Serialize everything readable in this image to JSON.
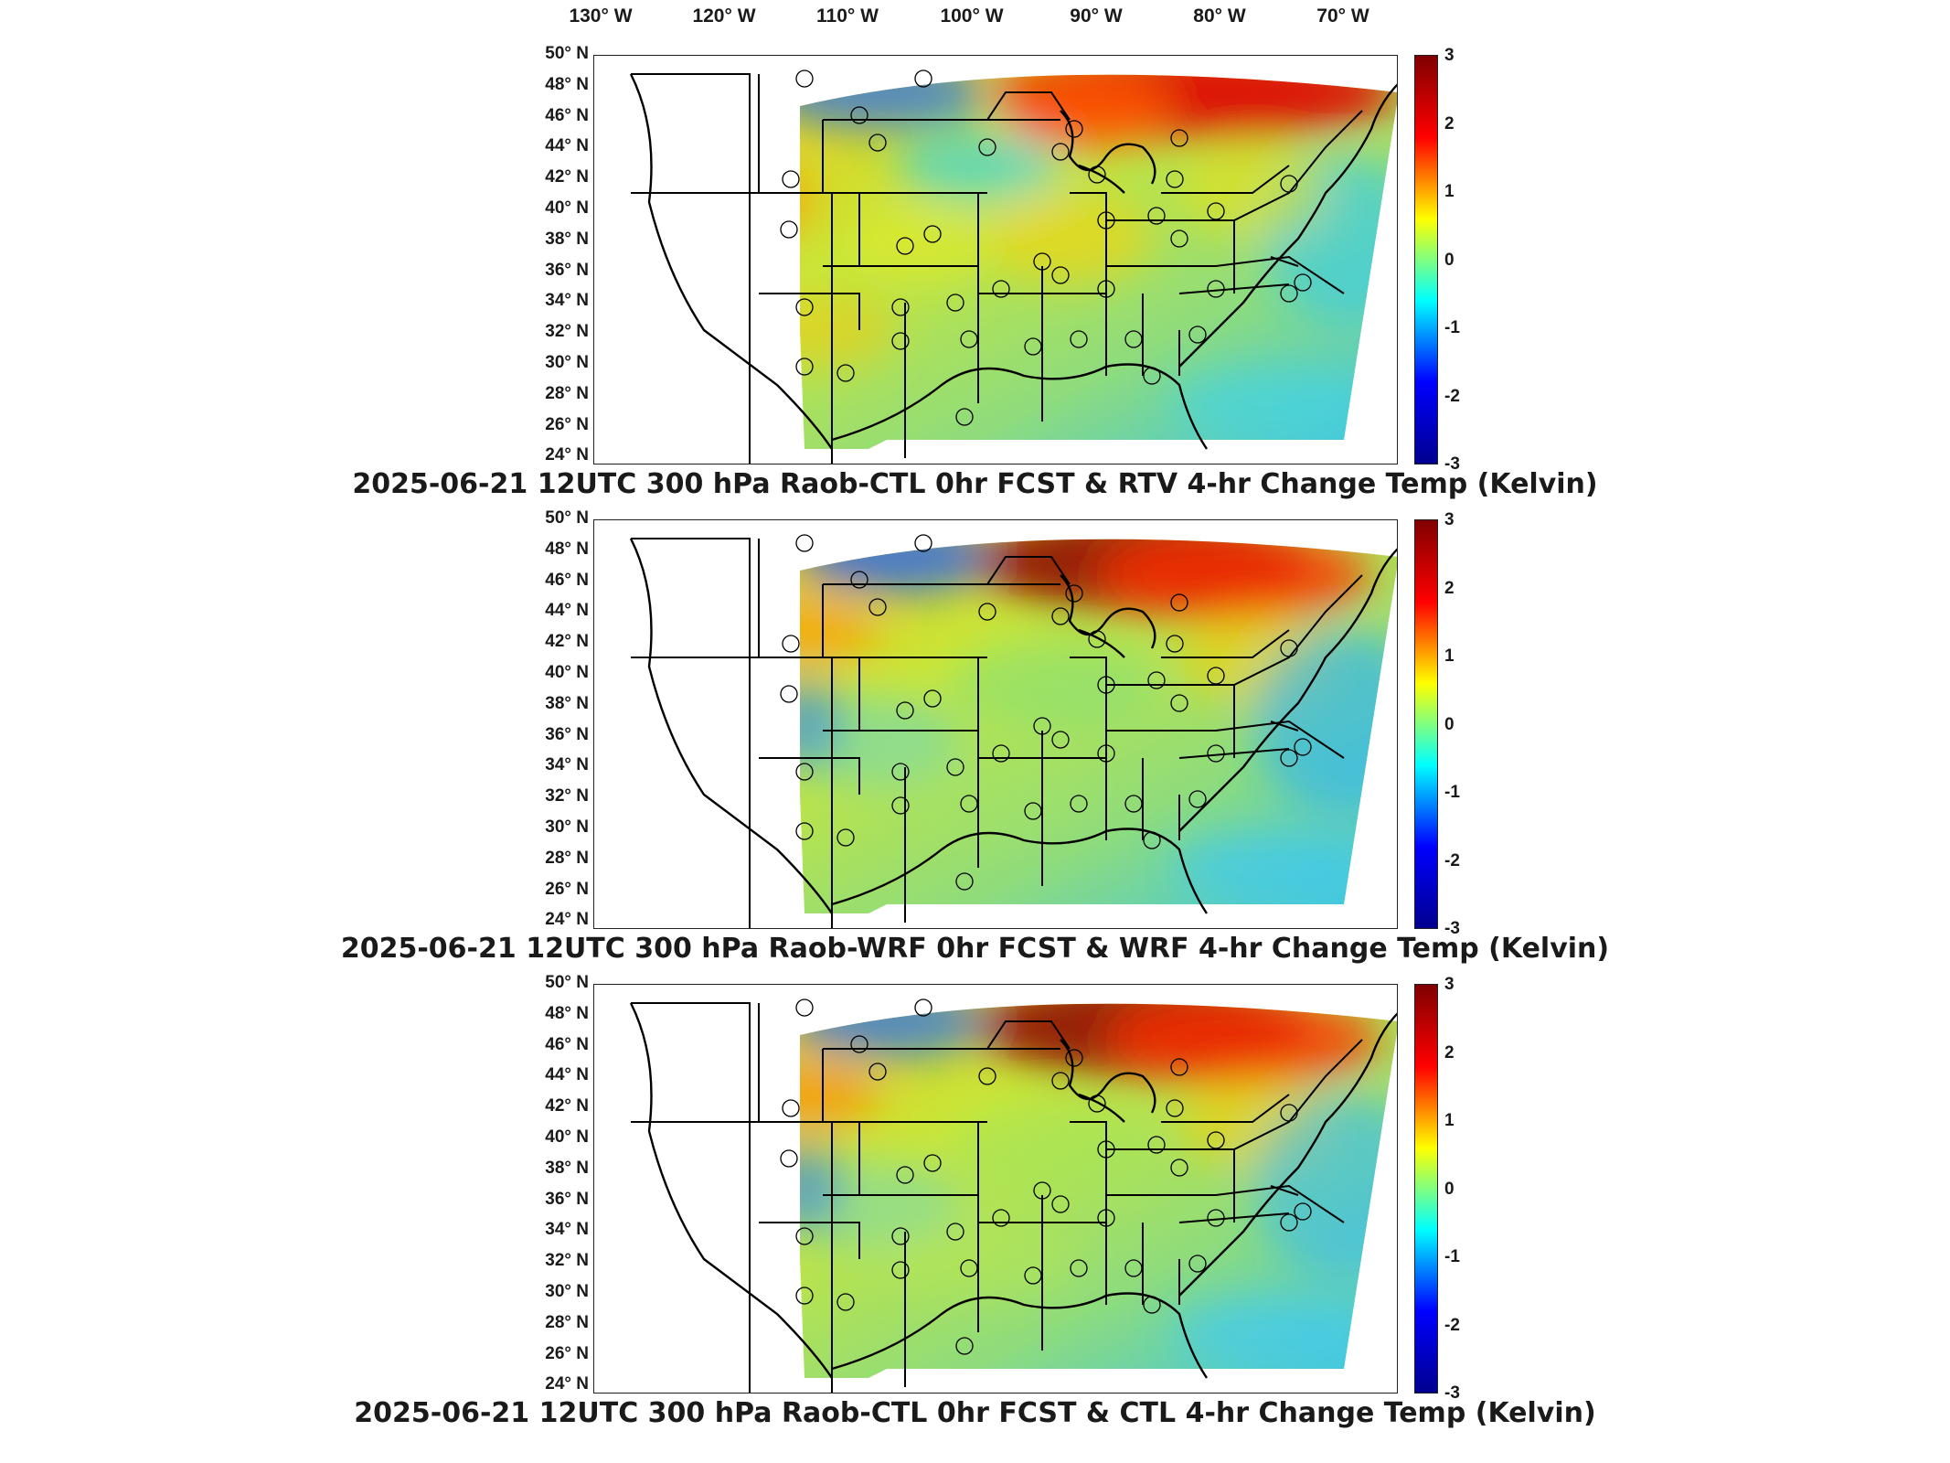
{
  "lon_labels": [
    "130° W",
    "120° W",
    "110° W",
    "100° W",
    "90° W",
    "80° W",
    "70° W"
  ],
  "lat_labels": [
    "50° N",
    "48° N",
    "46° N",
    "44° N",
    "42° N",
    "40° N",
    "38° N",
    "36° N",
    "34° N",
    "32° N",
    "30° N",
    "28° N",
    "26° N",
    "24° N"
  ],
  "colorbar": {
    "ticks": [
      "3",
      "2",
      "1",
      "0",
      "-1",
      "-2",
      "-3"
    ],
    "range": [
      -3,
      3
    ],
    "colormap": "jet",
    "colors": [
      "#00008f",
      "#0000ff",
      "#00ffff",
      "#ffff00",
      "#ff0000",
      "#800000"
    ]
  },
  "panels": [
    {
      "title": "2025-06-21 12UTC 300 hPa Raob-CTL 0hr FCST & RTV 4-hr Change Temp (Kelvin)"
    },
    {
      "title": "2025-06-21 12UTC 300 hPa Raob-WRF 0hr FCST & WRF 4-hr Change Temp (Kelvin)"
    },
    {
      "title": "2025-06-21 12UTC 300 hPa Raob-CTL 0hr FCST & CTL 4-hr Change Temp (Kelvin)"
    }
  ],
  "colors": {
    "border": "#000000",
    "background": "#ffffff"
  }
}
